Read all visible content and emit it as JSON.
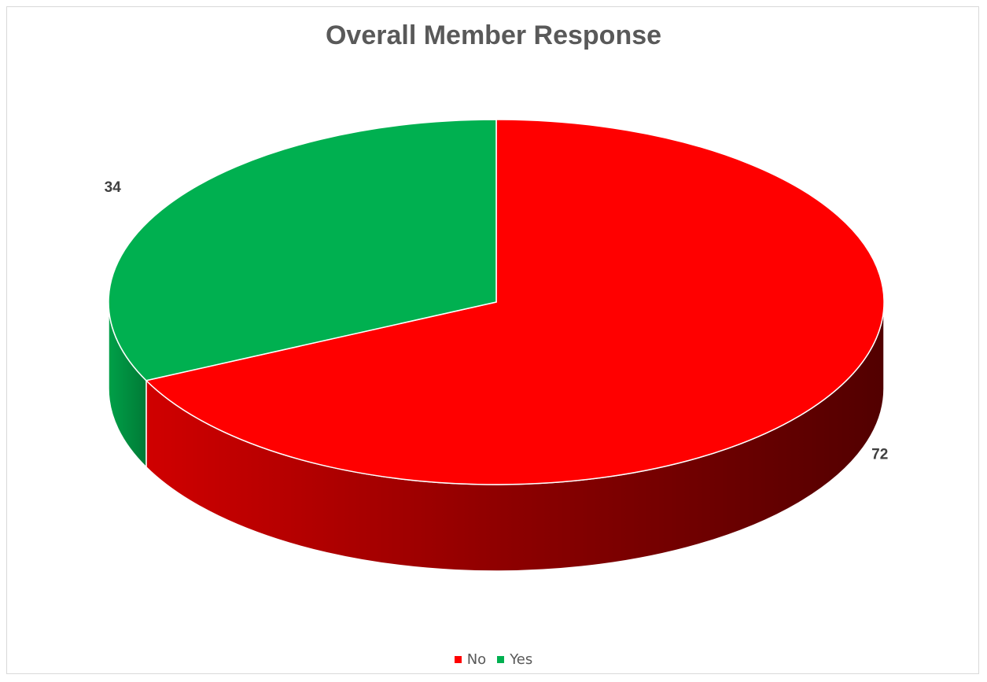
{
  "chart_data": {
    "type": "pie",
    "title": "Overall Member Response",
    "categories": [
      "No",
      "Yes"
    ],
    "values": [
      72,
      34
    ],
    "colors": [
      "#ff0000",
      "#00b050"
    ],
    "data_labels": [
      "72",
      "34"
    ],
    "legend_position": "bottom",
    "three_d": true
  }
}
